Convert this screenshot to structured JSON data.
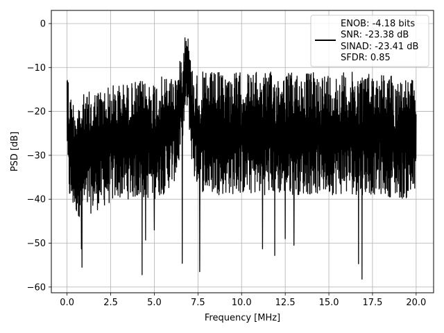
{
  "chart_data": {
    "type": "line",
    "title": "",
    "xlabel": "Frequency [MHz]",
    "ylabel": "PSD [dB]",
    "xlim": [
      -0.9,
      21.0
    ],
    "ylim": [
      -61.3,
      3.0
    ],
    "xticks": [
      0.0,
      2.5,
      5.0,
      7.5,
      10.0,
      12.5,
      15.0,
      17.5,
      20.0
    ],
    "xtick_labels": [
      "0.0",
      "2.5",
      "5.0",
      "7.5",
      "10.0",
      "12.5",
      "15.0",
      "17.5",
      "20.0"
    ],
    "yticks": [
      0,
      -10,
      -20,
      -30,
      -40,
      -50,
      -60
    ],
    "ytick_labels": [
      "0",
      "−10",
      "−20",
      "−30",
      "−40",
      "−50",
      "−60"
    ],
    "grid": true,
    "legend_position": "top-right",
    "legend_entries": [
      "ENOB: -4.18 bits",
      "SNR: -23.38 dB",
      "SINAD: -23.41 dB",
      "SFDR: 0.85"
    ],
    "series": [
      {
        "color": "#000000",
        "envelope": {
          "x": [
            0.0,
            0.02,
            0.05,
            0.1,
            0.2,
            0.4,
            0.6,
            0.8,
            1.0,
            1.5,
            2.0,
            2.5,
            3.0,
            3.5,
            4.0,
            4.5,
            5.0,
            5.5,
            6.0,
            6.3,
            6.5,
            6.7,
            6.8,
            6.9,
            7.0,
            7.1,
            7.3,
            7.6,
            8.0,
            8.5,
            9.0,
            10.0,
            11.0,
            12.0,
            13.0,
            14.0,
            15.0,
            16.0,
            17.0,
            18.0,
            19.0,
            20.0
          ],
          "upper": [
            -8,
            -4,
            -10,
            -14,
            -16,
            -17,
            -17,
            -16,
            -16,
            -15,
            -14.5,
            -14,
            -13.5,
            -13.5,
            -13,
            -13,
            -12.5,
            -12,
            -11.5,
            -11,
            -8,
            -3,
            0,
            -1,
            -5,
            -9,
            -11,
            -11,
            -11,
            -11,
            -11,
            -11,
            -11,
            -11,
            -11,
            -11,
            -11,
            -11,
            -11,
            -11,
            -12,
            -13
          ],
          "lower": [
            -25,
            -34,
            -38,
            -40,
            -42,
            -43,
            -44,
            -44,
            -44,
            -43,
            -42,
            -41,
            -40,
            -40,
            -40,
            -40,
            -40,
            -39,
            -37,
            -35,
            -30,
            -25,
            -20,
            -20,
            -24,
            -30,
            -36,
            -38,
            -39,
            -39,
            -39,
            -39,
            -39,
            -39,
            -39,
            -39,
            -39,
            -39,
            -39,
            -39,
            -40,
            -40
          ]
        },
        "notable_minima": [
          {
            "x": 0.85,
            "y": -55.5
          },
          {
            "x": 0.82,
            "y": -51.3
          },
          {
            "x": 4.3,
            "y": -57.2
          },
          {
            "x": 4.5,
            "y": -49.3
          },
          {
            "x": 5.0,
            "y": -47.0
          },
          {
            "x": 6.6,
            "y": -54.6
          },
          {
            "x": 7.6,
            "y": -56.5
          },
          {
            "x": 11.2,
            "y": -51.3
          },
          {
            "x": 11.9,
            "y": -52.8
          },
          {
            "x": 12.5,
            "y": -49.0
          },
          {
            "x": 13.0,
            "y": -50.5
          },
          {
            "x": 16.7,
            "y": -54.7
          },
          {
            "x": 16.9,
            "y": -58.2
          }
        ]
      }
    ]
  }
}
